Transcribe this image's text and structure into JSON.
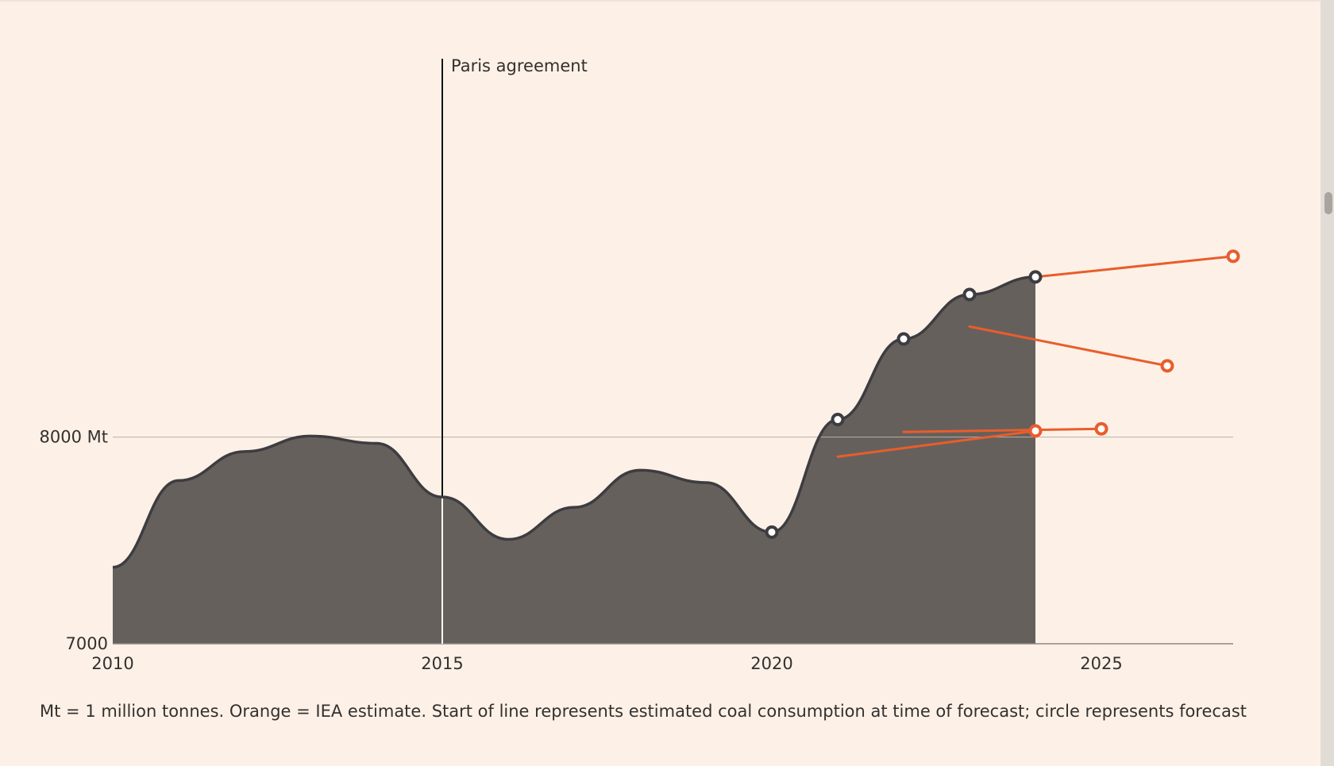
{
  "chart_data": {
    "type": "area",
    "y_unit_suffix": "Mt",
    "ylim": [
      7000,
      10000
    ],
    "xlim": [
      2010,
      2027
    ],
    "grid_lines": [
      8000
    ],
    "y_ticks": [
      {
        "value": 7000,
        "label": "7000"
      },
      {
        "value": 8000,
        "label": "8000 Mt"
      }
    ],
    "x_ticks": [
      {
        "value": 2010,
        "label": "2010"
      },
      {
        "value": 2015,
        "label": "2015"
      },
      {
        "value": 2020,
        "label": "2020"
      },
      {
        "value": 2025,
        "label": "2025"
      }
    ],
    "actual_series": {
      "color": "#66605c",
      "line_color": "#3d3c41",
      "x": [
        2010,
        2011,
        2012,
        2013,
        2014,
        2015,
        2016,
        2017,
        2018,
        2019,
        2020,
        2021,
        2022,
        2023,
        2024
      ],
      "values": [
        7370,
        7790,
        7930,
        8005,
        7970,
        7710,
        7505,
        7660,
        7840,
        7780,
        7540,
        8085,
        8475,
        8690,
        8775
      ],
      "marked_points": [
        2020,
        2021,
        2022,
        2023,
        2024
      ]
    },
    "forecasts": [
      {
        "start": {
          "x": 2021,
          "y": 7905
        },
        "end": {
          "x": 2024,
          "y": 8030
        }
      },
      {
        "start": {
          "x": 2022,
          "y": 8025
        },
        "end": {
          "x": 2025,
          "y": 8040
        }
      },
      {
        "start": {
          "x": 2023,
          "y": 8535
        },
        "end": {
          "x": 2026,
          "y": 8345
        }
      },
      {
        "start": {
          "x": 2024,
          "y": 8775
        },
        "end": {
          "x": 2027,
          "y": 8875
        }
      }
    ],
    "forecast_color": "#e95d2c",
    "annotations": [
      {
        "x": 2015,
        "label": "Paris agreement"
      }
    ]
  },
  "footnote": "Mt = 1 million tonnes. Orange = IEA estimate. Start of line represents estimated coal consumption at time of forecast; circle represents forecast"
}
